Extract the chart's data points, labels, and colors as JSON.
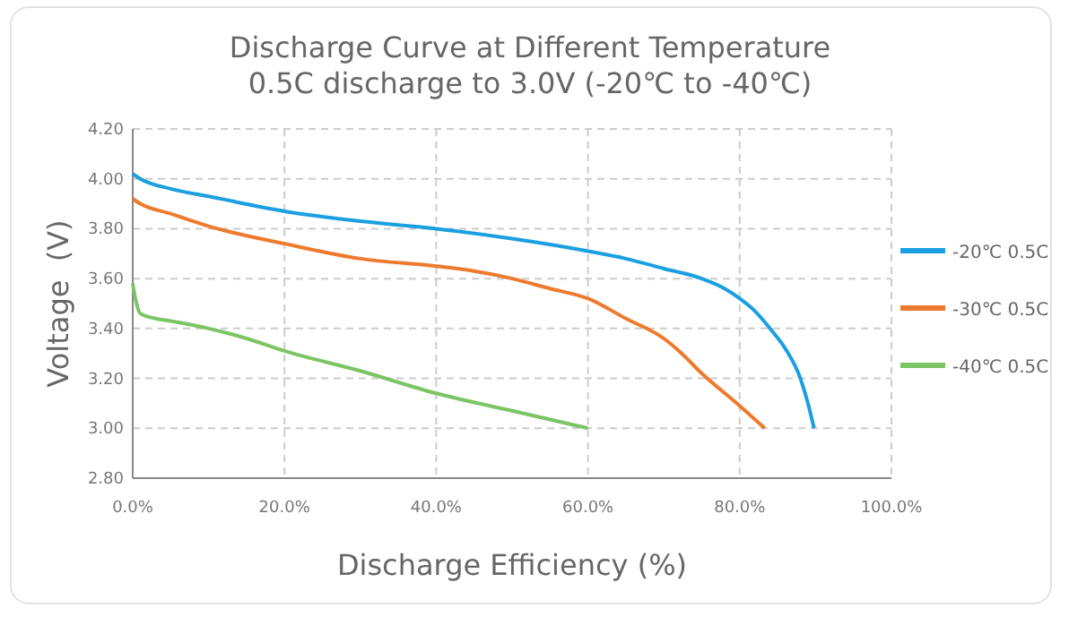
{
  "chart_data": {
    "type": "line",
    "title": "Discharge Curve at Different Temperature",
    "subtitle": "0.5C discharge to 3.0V (-20℃ to -40℃)",
    "xlabel": "Discharge Efficiency (%)",
    "ylabel": "Voltage  (V)",
    "xlim": [
      0,
      100
    ],
    "xticks": [
      {
        "value": 0,
        "label": "0.0%"
      },
      {
        "value": 20,
        "label": "20.0%"
      },
      {
        "value": 40,
        "label": "40.0%"
      },
      {
        "value": 60,
        "label": "60.0%"
      },
      {
        "value": 80,
        "label": "80.0%"
      },
      {
        "value": 100,
        "label": "100.0%"
      }
    ],
    "ylim": [
      2.8,
      4.2
    ],
    "yticks": [
      {
        "value": 2.8,
        "label": "2.80"
      },
      {
        "value": 3.0,
        "label": "3.00"
      },
      {
        "value": 3.2,
        "label": "3.20"
      },
      {
        "value": 3.4,
        "label": "3.40"
      },
      {
        "value": 3.6,
        "label": "3.60"
      },
      {
        "value": 3.8,
        "label": "3.80"
      },
      {
        "value": 4.0,
        "label": "4.00"
      },
      {
        "value": 4.2,
        "label": "4.20"
      }
    ],
    "grid": true,
    "legend": "right",
    "marker": "none",
    "line_style": "solid",
    "series": [
      {
        "name": "-20℃ 0.5C",
        "color": "#1a9fe0",
        "x": [
          0,
          1,
          5,
          10,
          20,
          30,
          40,
          50,
          60,
          65,
          70,
          75,
          78,
          80,
          82,
          84,
          86,
          88,
          89,
          89.8
        ],
        "values": [
          4.02,
          4.0,
          3.96,
          3.93,
          3.87,
          3.83,
          3.8,
          3.76,
          3.71,
          3.68,
          3.64,
          3.6,
          3.56,
          3.52,
          3.47,
          3.4,
          3.32,
          3.2,
          3.1,
          3.0
        ]
      },
      {
        "name": "-30℃ 0.5C",
        "color": "#ee7a2e",
        "x": [
          0,
          1,
          5,
          10,
          20,
          30,
          40,
          45,
          50,
          55,
          60,
          65,
          70,
          72,
          75,
          80,
          83.3
        ],
        "values": [
          3.92,
          3.9,
          3.86,
          3.81,
          3.74,
          3.68,
          3.65,
          3.63,
          3.6,
          3.56,
          3.52,
          3.44,
          3.36,
          3.31,
          3.22,
          3.09,
          3.0
        ]
      },
      {
        "name": "-40℃ 0.5C",
        "color": "#7cc464",
        "x": [
          0,
          0.5,
          1,
          3,
          5,
          10,
          15,
          20,
          30,
          40,
          50,
          60
        ],
        "values": [
          3.58,
          3.5,
          3.46,
          3.44,
          3.43,
          3.4,
          3.36,
          3.31,
          3.23,
          3.14,
          3.07,
          3.0
        ]
      }
    ]
  }
}
